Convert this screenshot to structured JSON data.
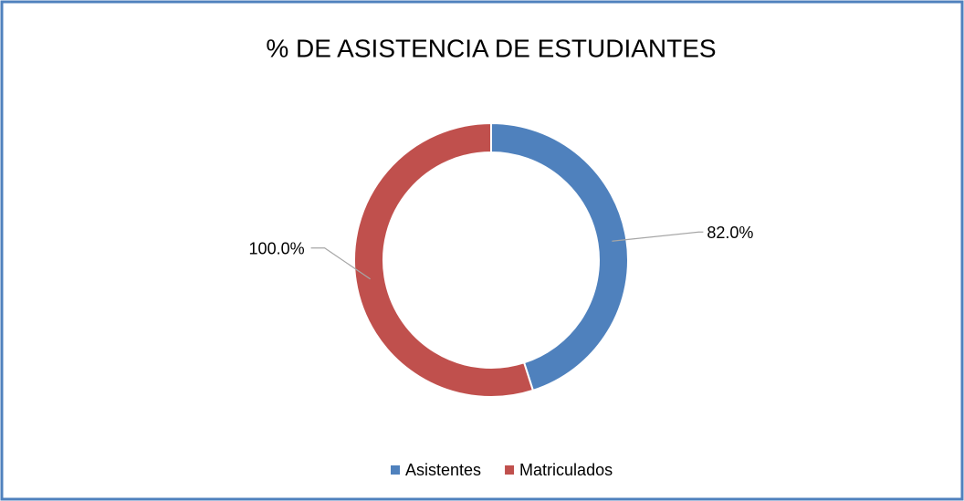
{
  "chart_data": {
    "type": "donut",
    "title": "% DE ASISTENCIA DE ESTUDIANTES",
    "categories": [
      "Asistentes",
      "Matriculados"
    ],
    "values": [
      82,
      100
    ],
    "value_labels": [
      "82.0%",
      "100.0%"
    ],
    "colors": [
      "#4f81bd",
      "#c0504d"
    ],
    "legend": "bottom"
  }
}
